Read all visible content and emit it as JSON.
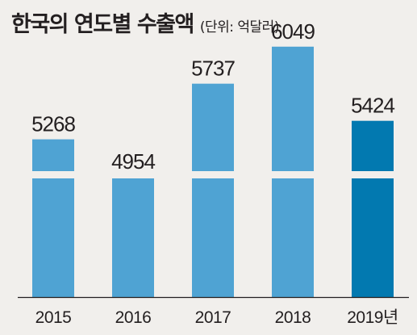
{
  "title": "한국의 연도별 수출액",
  "unit": "(단위: 억달러)",
  "chart_data": {
    "type": "bar",
    "title": "한국의 연도별 수출액",
    "ylabel": "(단위: 억달러)",
    "xlabel": "",
    "categories": [
      "2015",
      "2016",
      "2017",
      "2018",
      "2019년"
    ],
    "values": [
      5268,
      4954,
      5737,
      6049,
      5424
    ],
    "axis_break": true,
    "grid": false,
    "colors": {
      "bar": "#4fa3d3",
      "highlight": "#0279b0",
      "background": "#f1efec",
      "axis": "#231f20"
    },
    "highlight_index": 4
  }
}
